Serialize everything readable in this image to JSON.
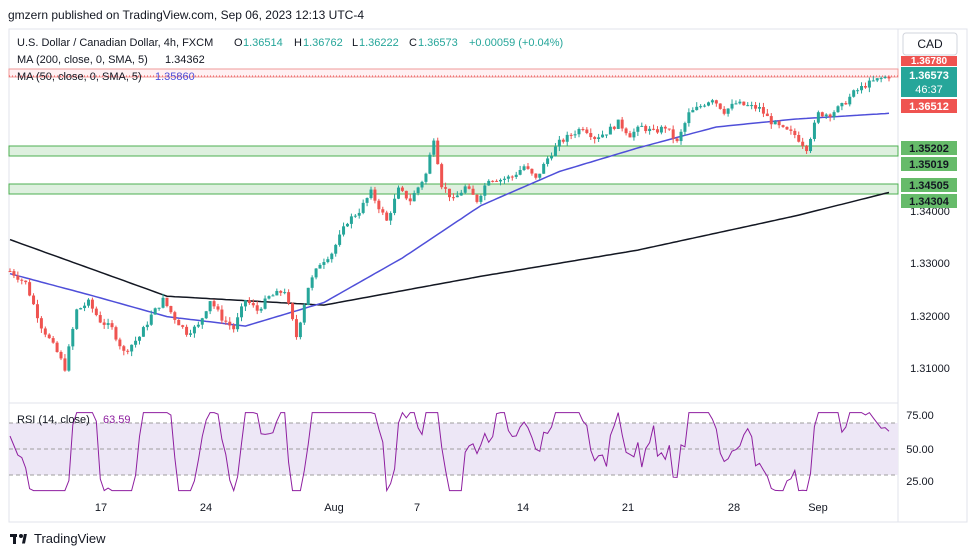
{
  "header": {
    "publisher_line": "gmzern published on TradingView.com, Sep 06, 2023 12:13 UTC-4"
  },
  "symbol_info": {
    "title": "U.S. Dollar / Canadian Dollar, 4h, FXCM",
    "open_label": "O",
    "open": "1.36514",
    "high_label": "H",
    "high": "1.36762",
    "low_label": "L",
    "low": "1.36222",
    "close_label": "C",
    "close": "1.36573",
    "change": "+0.00059 (+0.04%)"
  },
  "indicators": {
    "ma200": {
      "label": "MA (200, close, 0, SMA, 5)",
      "value": "1.34362",
      "color": "#131722"
    },
    "ma50": {
      "label": "MA (50, close, 0, SMA, 5)",
      "value": "1.35860",
      "color": "#4f4fd9"
    },
    "rsi": {
      "label": "RSI (14, close)",
      "value": "63.59",
      "color": "#8e1fa0"
    }
  },
  "currency_button": "CAD",
  "price_tags": {
    "top_partial": "1.36780",
    "last_price": "1.36573",
    "countdown": "46:37",
    "open_price": "1.36512",
    "zone1_top": "1.35202",
    "zone1_bottom": "1.35019",
    "zone2_top": "1.34505",
    "zone2_bottom": "1.34304"
  },
  "colors": {
    "up": "#26a69a",
    "down": "#ef5350",
    "zone_fill": "#c8e6c9",
    "zone_line": "#4caf50",
    "resistance": "#ef9a9a",
    "rsi_band": "#ede7f6"
  },
  "footer": {
    "brand": "TradingView"
  },
  "chart_data": {
    "type": "candlestick",
    "title": "U.S. Dollar / Canadian Dollar, 4h, FXCM",
    "x_tick_labels": [
      "17",
      "24",
      "Aug",
      "7",
      "14",
      "21",
      "28",
      "Sep"
    ],
    "y_tick_labels": [
      "1.31000",
      "1.32000",
      "1.33000",
      "1.34000"
    ],
    "ylim": [
      1.304,
      1.3693
    ],
    "price_series_approx": [
      [
        0,
        1.3285
      ],
      [
        4,
        1.3262
      ],
      [
        8,
        1.318
      ],
      [
        12,
        1.313
      ],
      [
        14,
        1.31
      ],
      [
        17,
        1.321
      ],
      [
        20,
        1.3225
      ],
      [
        23,
        1.319
      ],
      [
        26,
        1.3175
      ],
      [
        29,
        1.313
      ],
      [
        33,
        1.316
      ],
      [
        36,
        1.32
      ],
      [
        39,
        1.323
      ],
      [
        42,
        1.3195
      ],
      [
        45,
        1.3168
      ],
      [
        48,
        1.318
      ],
      [
        51,
        1.323
      ],
      [
        54,
        1.3195
      ],
      [
        57,
        1.3175
      ],
      [
        60,
        1.323
      ],
      [
        63,
        1.321
      ],
      [
        66,
        1.3235
      ],
      [
        70,
        1.3248
      ],
      [
        73,
        1.316
      ],
      [
        76,
        1.3255
      ],
      [
        79,
        1.33
      ],
      [
        82,
        1.332
      ],
      [
        86,
        1.338
      ],
      [
        89,
        1.34
      ],
      [
        92,
        1.3435
      ],
      [
        96,
        1.338
      ],
      [
        99,
        1.344
      ],
      [
        102,
        1.342
      ],
      [
        106,
        1.347
      ],
      [
        108,
        1.354
      ],
      [
        110,
        1.345
      ],
      [
        113,
        1.342
      ],
      [
        116,
        1.3445
      ],
      [
        119,
        1.342
      ],
      [
        122,
        1.3462
      ],
      [
        125,
        1.346
      ],
      [
        128,
        1.3465
      ],
      [
        131,
        1.3485
      ],
      [
        134,
        1.346
      ],
      [
        137,
        1.35
      ],
      [
        140,
        1.353
      ],
      [
        143,
        1.3545
      ],
      [
        146,
        1.356
      ],
      [
        149,
        1.354
      ],
      [
        152,
        1.355
      ],
      [
        155,
        1.3568
      ],
      [
        158,
        1.3545
      ],
      [
        161,
        1.356
      ],
      [
        164,
        1.355
      ],
      [
        167,
        1.356
      ],
      [
        170,
        1.353
      ],
      [
        173,
        1.3585
      ],
      [
        176,
        1.36
      ],
      [
        179,
        1.3615
      ],
      [
        182,
        1.359
      ],
      [
        185,
        1.3605
      ],
      [
        188,
        1.36
      ],
      [
        191,
        1.3595
      ],
      [
        194,
        1.357
      ],
      [
        197,
        1.3555
      ],
      [
        200,
        1.3545
      ],
      [
        203,
        1.352
      ],
      [
        206,
        1.3585
      ],
      [
        209,
        1.3585
      ],
      [
        212,
        1.36
      ],
      [
        215,
        1.3625
      ],
      [
        218,
        1.364
      ],
      [
        221,
        1.365
      ],
      [
        224,
        1.3657
      ]
    ],
    "ma200_approx": [
      [
        0,
        1.3345
      ],
      [
        40,
        1.3237
      ],
      [
        80,
        1.322
      ],
      [
        120,
        1.3275
      ],
      [
        160,
        1.3325
      ],
      [
        200,
        1.339
      ],
      [
        224,
        1.3435
      ]
    ],
    "ma50_approx": [
      [
        0,
        1.328
      ],
      [
        20,
        1.324
      ],
      [
        40,
        1.3198
      ],
      [
        60,
        1.318
      ],
      [
        80,
        1.3225
      ],
      [
        100,
        1.331
      ],
      [
        120,
        1.341
      ],
      [
        140,
        1.3475
      ],
      [
        160,
        1.352
      ],
      [
        180,
        1.356
      ],
      [
        200,
        1.3575
      ],
      [
        224,
        1.3586
      ]
    ],
    "rsi": {
      "ylim": [
        15,
        80
      ],
      "levels": [
        70,
        50,
        30
      ],
      "y_tick_labels": [
        "75.00",
        "50.00",
        "25.00"
      ],
      "last": 63.59
    },
    "zones": [
      {
        "top": 1.35202,
        "bottom": 1.35019
      },
      {
        "top": 1.34505,
        "bottom": 1.34304
      }
    ],
    "resistance": [
      1.3678,
      1.3664
    ]
  }
}
